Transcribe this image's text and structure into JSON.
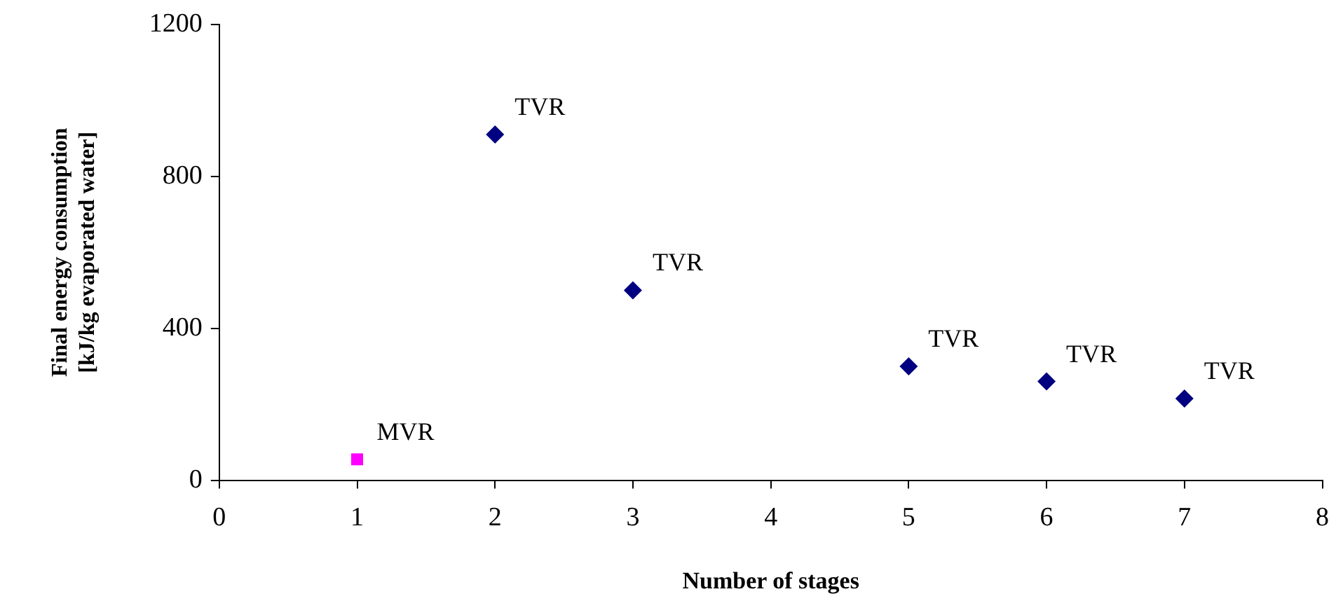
{
  "chart_data": {
    "type": "scatter",
    "xlabel": "Number of stages",
    "ylabel": "Final energy consumption\n[kJ/kg evaporated water]",
    "series": [
      {
        "name": "MVR",
        "color": "#ff00ff",
        "marker": "square",
        "x": [
          1
        ],
        "values": [
          55
        ]
      },
      {
        "name": "TVR",
        "color": "#000080",
        "marker": "diamond",
        "x": [
          2,
          3,
          5,
          6,
          7
        ],
        "values": [
          910,
          500,
          300,
          260,
          215
        ]
      }
    ],
    "xlim": [
      0,
      8
    ],
    "xticks": [
      0,
      1,
      2,
      3,
      4,
      5,
      6,
      7,
      8
    ],
    "ylim": [
      0,
      1200
    ],
    "yticks": [
      0,
      400,
      800,
      1200
    ],
    "grid": false,
    "legend": false
  }
}
